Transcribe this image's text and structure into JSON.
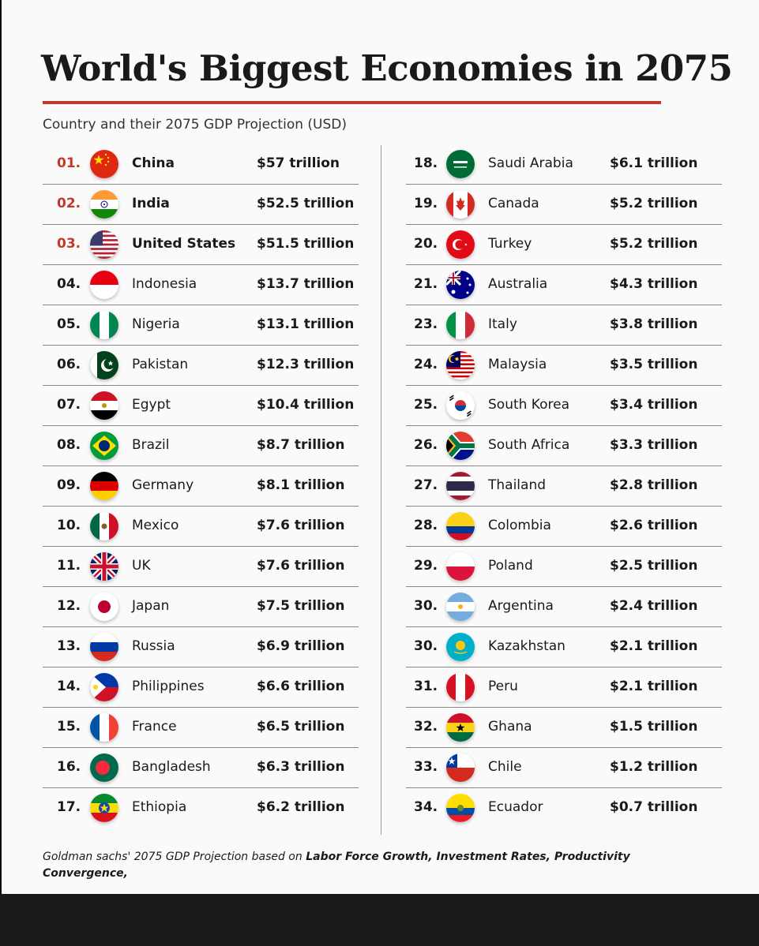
{
  "title": "World's Biggest Economies in 2075",
  "subtitle": "Country and their 2075 GDP Projection (USD)",
  "accent_color": "#c0392b",
  "left_rows": [
    {
      "rank": "01.",
      "country": "China",
      "gdp": "$57 trillion",
      "flag": "china-flag-icon",
      "top": true
    },
    {
      "rank": "02.",
      "country": "India",
      "gdp": "$52.5 trillion",
      "flag": "india-flag-icon",
      "top": true
    },
    {
      "rank": "03.",
      "country": "United States",
      "gdp": "$51.5 trillion",
      "flag": "usa-flag-icon",
      "top": true
    },
    {
      "rank": "04.",
      "country": "Indonesia",
      "gdp": "$13.7 trillion",
      "flag": "indonesia-flag-icon"
    },
    {
      "rank": "05.",
      "country": "Nigeria",
      "gdp": "$13.1 trillion",
      "flag": "nigeria-flag-icon"
    },
    {
      "rank": "06.",
      "country": "Pakistan",
      "gdp": "$12.3 trillion",
      "flag": "pakistan-flag-icon"
    },
    {
      "rank": "07.",
      "country": "Egypt",
      "gdp": "$10.4 trillion",
      "flag": "egypt-flag-icon"
    },
    {
      "rank": "08.",
      "country": "Brazil",
      "gdp": "$8.7 trillion",
      "flag": "brazil-flag-icon"
    },
    {
      "rank": "09.",
      "country": "Germany",
      "gdp": "$8.1 trillion",
      "flag": "germany-flag-icon"
    },
    {
      "rank": "10.",
      "country": "Mexico",
      "gdp": "$7.6 trillion",
      "flag": "mexico-flag-icon"
    },
    {
      "rank": "11.",
      "country": "UK",
      "gdp": "$7.6 trillion",
      "flag": "uk-flag-icon"
    },
    {
      "rank": "12.",
      "country": "Japan",
      "gdp": "$7.5 trillion",
      "flag": "japan-flag-icon"
    },
    {
      "rank": "13.",
      "country": "Russia",
      "gdp": "$6.9 trillion",
      "flag": "russia-flag-icon"
    },
    {
      "rank": "14.",
      "country": "Philippines",
      "gdp": "$6.6 trillion",
      "flag": "philippines-flag-icon"
    },
    {
      "rank": "15.",
      "country": "France",
      "gdp": "$6.5 trillion",
      "flag": "france-flag-icon"
    },
    {
      "rank": "16.",
      "country": "Bangladesh",
      "gdp": "$6.3 trillion",
      "flag": "bangladesh-flag-icon"
    },
    {
      "rank": "17.",
      "country": "Ethiopia",
      "gdp": "$6.2 trillion",
      "flag": "ethiopia-flag-icon"
    }
  ],
  "right_rows": [
    {
      "rank": "18.",
      "country": "Saudi Arabia",
      "gdp": "$6.1 trillion",
      "flag": "saudi-arabia-flag-icon"
    },
    {
      "rank": "19.",
      "country": "Canada",
      "gdp": "$5.2 trillion",
      "flag": "canada-flag-icon"
    },
    {
      "rank": "20.",
      "country": "Turkey",
      "gdp": "$5.2 trillion",
      "flag": "turkey-flag-icon"
    },
    {
      "rank": "21.",
      "country": "Australia",
      "gdp": "$4.3 trillion",
      "flag": "australia-flag-icon"
    },
    {
      "rank": "23.",
      "country": " Italy",
      "gdp": "$3.8 trillion",
      "flag": "italy-flag-icon"
    },
    {
      "rank": "24.",
      "country": "Malaysia",
      "gdp": "$3.5 trillion",
      "flag": "malaysia-flag-icon"
    },
    {
      "rank": "25.",
      "country": "South Korea",
      "gdp": "$3.4 trillion",
      "flag": "south-korea-flag-icon"
    },
    {
      "rank": "26.",
      "country": "South Africa",
      "gdp": "$3.3 trillion",
      "flag": "south-africa-flag-icon"
    },
    {
      "rank": "27.",
      "country": "Thailand",
      "gdp": "$2.8 trillion",
      "flag": "thailand-flag-icon"
    },
    {
      "rank": "28.",
      "country": "Colombia",
      "gdp": "$2.6 trillion",
      "flag": "colombia-flag-icon"
    },
    {
      "rank": "29.",
      "country": "Poland",
      "gdp": "$2.5 trillion",
      "flag": "poland-flag-icon"
    },
    {
      "rank": "30.",
      "country": "Argentina",
      "gdp": " $2.4 trillion",
      "flag": "argentina-flag-icon"
    },
    {
      "rank": "30.",
      "country": "Kazakhstan",
      "gdp": "$2.1 trillion",
      "flag": "kazakhstan-flag-icon"
    },
    {
      "rank": "31.",
      "country": "Peru",
      "gdp": "$2.1 trillion",
      "flag": "peru-flag-icon"
    },
    {
      "rank": "32.",
      "country": "Ghana",
      "gdp": "$1.5 trillion",
      "flag": "ghana-flag-icon"
    },
    {
      "rank": "33.",
      "country": "Chile",
      "gdp": "$1.2 trillion",
      "flag": "chile-flag-icon"
    },
    {
      "rank": "34.",
      "country": "Ecuador",
      "gdp": "$0.7 trillion",
      "flag": "ecuador-flag-icon"
    }
  ],
  "footer": {
    "prefix": "Goldman sachs' 2075 GDP Projection based on ",
    "emphasis": "Labor Force Growth, Investment Rates, Productivity Convergence,"
  }
}
